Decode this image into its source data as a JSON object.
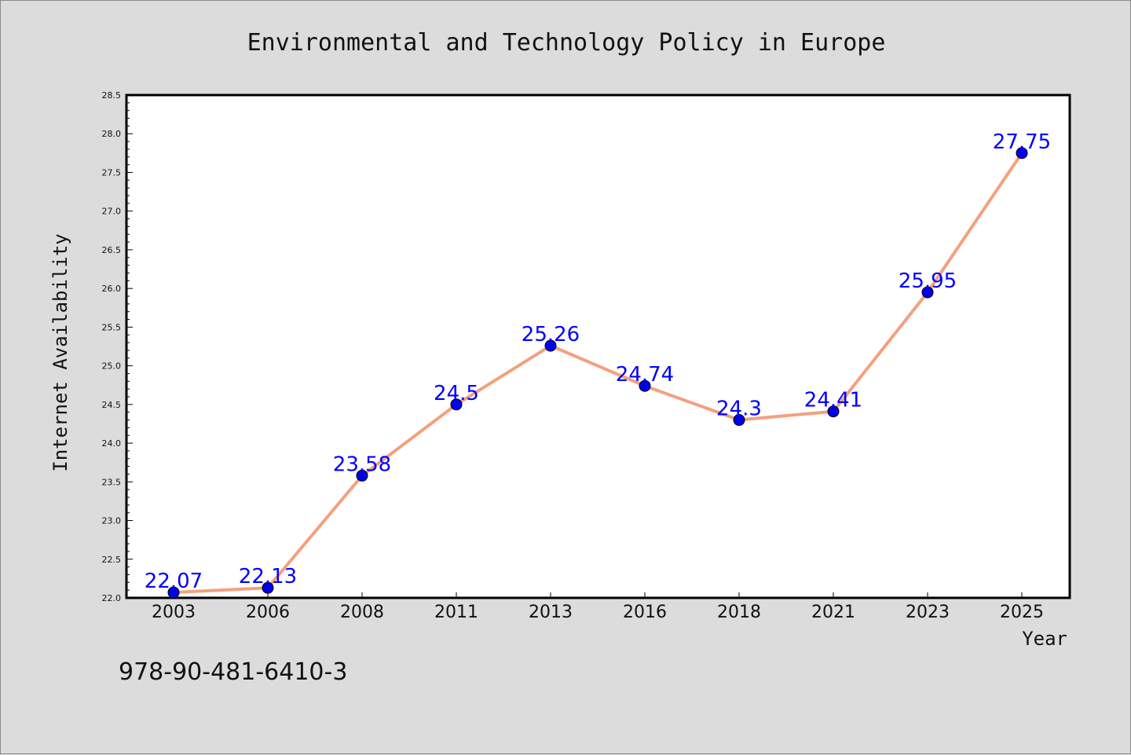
{
  "chart_data": {
    "type": "line",
    "title": "Environmental and Technology Policy in Europe",
    "xlabel": "Year",
    "ylabel": "Internet Availability",
    "categories": [
      "2003",
      "2006",
      "2008",
      "2011",
      "2013",
      "2016",
      "2018",
      "2021",
      "2023",
      "2025"
    ],
    "series": [
      {
        "values": [
          22.07,
          22.13,
          23.58,
          24.5,
          25.26,
          24.74,
          24.3,
          24.41,
          25.95,
          27.75
        ]
      }
    ],
    "data_labels": [
      "22.07",
      "22.13",
      "23.58",
      "24.5",
      "25.26",
      "24.74",
      "24.3",
      "24.41",
      "25.95",
      "27.75"
    ],
    "ylim": [
      22.0,
      28.5
    ],
    "yticks": [
      "22.0",
      "22.5",
      "23.0",
      "23.5",
      "24.0",
      "24.5",
      "25.0",
      "25.5",
      "26.0",
      "26.5",
      "27.0",
      "27.5",
      "28.0",
      "28.5"
    ],
    "grid": false,
    "legend": "none",
    "colors": {
      "line": "#f4a07e",
      "marker": "#0000ee",
      "label": "#0000ff",
      "plot_bg": "#ffffff",
      "page_bg": "#dcdcdc"
    }
  },
  "footer": {
    "isbn": "978-90-481-6410-3"
  }
}
